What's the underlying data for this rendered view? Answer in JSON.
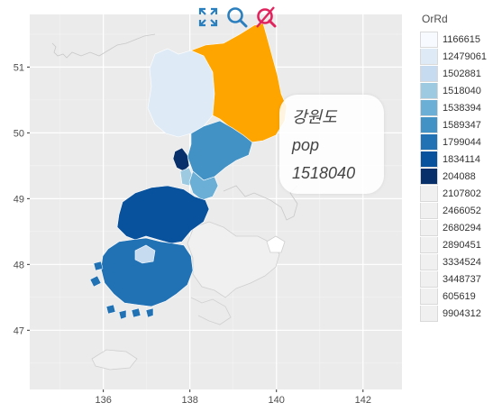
{
  "chart_data": {
    "type": "choropleth",
    "palette_name": "OrRd",
    "x_ticks": [
      "136",
      "138",
      "140",
      "142"
    ],
    "y_ticks": [
      "51",
      "50",
      "49",
      "48",
      "47"
    ],
    "xlim": [
      134.3,
      142.9
    ],
    "ylim": [
      46.1,
      51.8
    ],
    "legend": [
      {
        "value": "1166615",
        "color": "#f7fbff"
      },
      {
        "value": "12479061",
        "color": "#deebf7"
      },
      {
        "value": "1502881",
        "color": "#c6dbef"
      },
      {
        "value": "1518040",
        "color": "#9ecae1"
      },
      {
        "value": "1538394",
        "color": "#6baed6"
      },
      {
        "value": "1589347",
        "color": "#4292c6"
      },
      {
        "value": "1799044",
        "color": "#2171b5"
      },
      {
        "value": "1834114",
        "color": "#08519c"
      },
      {
        "value": "204088",
        "color": "#08306b"
      },
      {
        "value": "2107802",
        "color": "#f0f0f0"
      },
      {
        "value": "2466052",
        "color": "#f0f0f0"
      },
      {
        "value": "2680294",
        "color": "#f0f0f0"
      },
      {
        "value": "2890451",
        "color": "#f0f0f0"
      },
      {
        "value": "3334524",
        "color": "#f0f0f0"
      },
      {
        "value": "3448737",
        "color": "#f0f0f0"
      },
      {
        "value": "605619",
        "color": "#f0f0f0"
      },
      {
        "value": "9904312",
        "color": "#f0f0f0"
      }
    ],
    "highlight_color": "#ffa500",
    "highlighted_region": "강원도"
  },
  "tooltip": {
    "name": "강원도",
    "label": "pop",
    "value": "1518040"
  },
  "toolbar": {
    "zoom_icon": "fit-to-screen-icon",
    "search_icon": "magnifier-icon",
    "clear_icon": "clear-selection-icon"
  }
}
